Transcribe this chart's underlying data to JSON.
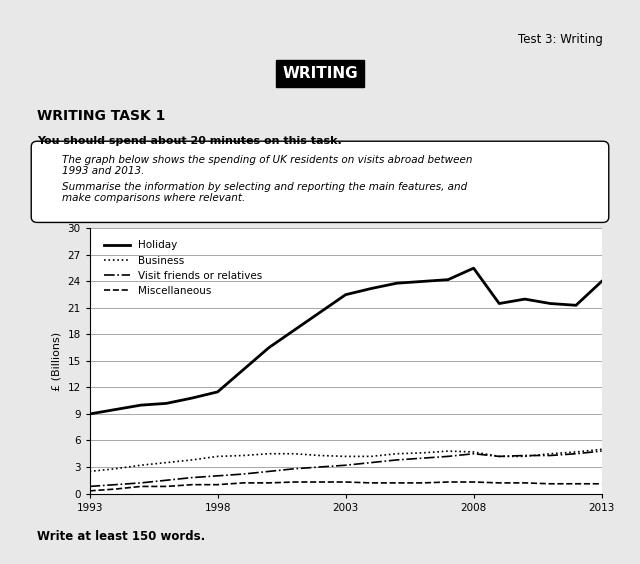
{
  "years": [
    1993,
    1994,
    1995,
    1996,
    1997,
    1998,
    1999,
    2000,
    2001,
    2002,
    2003,
    2004,
    2005,
    2006,
    2007,
    2008,
    2009,
    2010,
    2011,
    2012,
    2013
  ],
  "holiday": [
    9.0,
    9.5,
    10.0,
    10.2,
    10.8,
    11.5,
    14.0,
    16.5,
    18.5,
    20.5,
    22.5,
    23.2,
    23.8,
    24.0,
    24.2,
    25.5,
    21.5,
    22.0,
    21.5,
    21.3,
    24.0
  ],
  "business": [
    2.5,
    2.8,
    3.2,
    3.5,
    3.8,
    4.2,
    4.3,
    4.5,
    4.5,
    4.3,
    4.2,
    4.2,
    4.5,
    4.6,
    4.8,
    4.7,
    4.2,
    4.2,
    4.5,
    4.7,
    5.0
  ],
  "visit_friends": [
    0.8,
    1.0,
    1.2,
    1.5,
    1.8,
    2.0,
    2.2,
    2.5,
    2.8,
    3.0,
    3.2,
    3.5,
    3.8,
    4.0,
    4.2,
    4.5,
    4.2,
    4.3,
    4.3,
    4.5,
    4.8
  ],
  "miscellaneous": [
    0.3,
    0.5,
    0.8,
    0.8,
    1.0,
    1.0,
    1.2,
    1.2,
    1.3,
    1.3,
    1.3,
    1.2,
    1.2,
    1.2,
    1.3,
    1.3,
    1.2,
    1.2,
    1.1,
    1.1,
    1.1
  ],
  "ylim": [
    0,
    30
  ],
  "yticks": [
    0,
    3,
    6,
    9,
    12,
    15,
    18,
    21,
    24,
    27,
    30
  ],
  "xticks": [
    1993,
    1998,
    2003,
    2008,
    2013
  ],
  "ylabel": "£ (Billions)",
  "legend_labels": [
    "Holiday",
    "Business",
    "Visit friends or relatives",
    "Miscellaneous"
  ],
  "bg_color": "#ffffff",
  "page_bg": "#e8e8e8",
  "line_color": "#000000",
  "grid_color": "#aaaaaa"
}
